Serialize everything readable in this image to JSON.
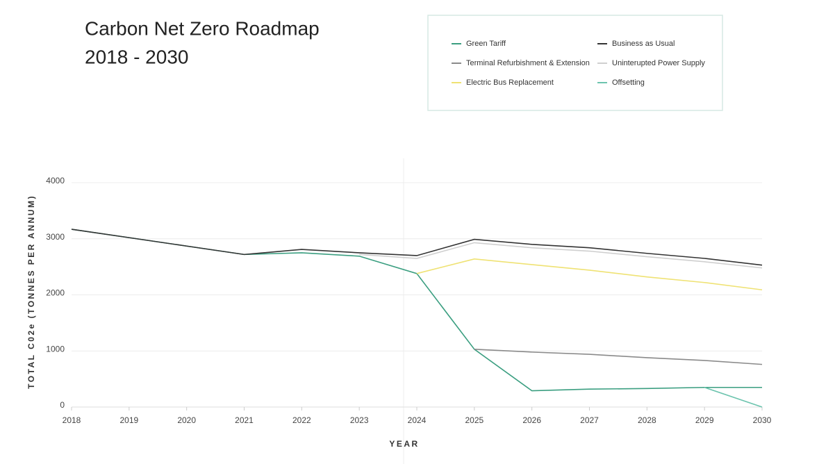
{
  "chart_data": {
    "type": "line",
    "title": "Carbon Net Zero Roadmap",
    "subtitle": "2018 - 2030",
    "y_label": "TOTAL C02e (TONNES PER ANNUM)",
    "x_label": "YEAR",
    "x": [
      2018,
      2019,
      2020,
      2021,
      2022,
      2023,
      2024,
      2025,
      2026,
      2027,
      2028,
      2029,
      2030
    ],
    "xlim": [
      2018,
      2030
    ],
    "xticks": [
      2018,
      2019,
      2020,
      2021,
      2022,
      2023,
      2024,
      2025,
      2026,
      2027,
      2028,
      2029,
      2030
    ],
    "ylim": [
      0,
      4000
    ],
    "yticks": [
      0,
      1000,
      2000,
      3000,
      4000
    ],
    "grid": true,
    "series": [
      {
        "name": "Green Tariff",
        "color": "#3a9e80",
        "values": [
          3170,
          3020,
          2870,
          2720,
          2750,
          2690,
          2380,
          1030,
          290,
          320,
          330,
          350,
          350
        ]
      },
      {
        "name": "Business as Usual",
        "color": "#333333",
        "values": [
          3170,
          3020,
          2870,
          2720,
          2810,
          2750,
          2700,
          2990,
          2900,
          2840,
          2740,
          2650,
          2530
        ]
      },
      {
        "name": "Terminal Refurbishment & Extension",
        "color": "#8a8a8a",
        "values": [
          null,
          null,
          null,
          null,
          null,
          null,
          null,
          1030,
          980,
          940,
          880,
          830,
          760
        ]
      },
      {
        "name": "Uninterupted Power Supply",
        "color": "#cfcfcf",
        "values": [
          null,
          null,
          null,
          null,
          null,
          2720,
          2650,
          2930,
          2840,
          2780,
          2680,
          2590,
          2480
        ]
      },
      {
        "name": "Electric Bus Replacement",
        "color": "#efe273",
        "values": [
          null,
          null,
          null,
          null,
          null,
          null,
          2380,
          2640,
          2540,
          2440,
          2320,
          2220,
          2090
        ]
      },
      {
        "name": "Offsetting",
        "color": "#6cc4ae",
        "values": [
          null,
          null,
          null,
          null,
          null,
          null,
          null,
          null,
          null,
          null,
          null,
          350,
          0
        ]
      }
    ]
  }
}
